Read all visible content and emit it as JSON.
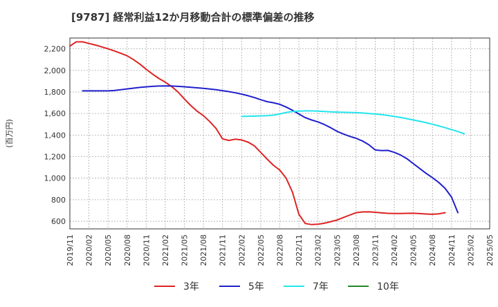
{
  "chart_data": {
    "type": "line",
    "title": "[9787]  経常利益12か月移動合計の標準偏差の推移",
    "ylabel": "(百万円)",
    "xlabel": "",
    "ylim": [
      530,
      2300
    ],
    "yticks": [
      600,
      800,
      1000,
      1200,
      1400,
      1600,
      1800,
      2000,
      2200
    ],
    "ytick_labels": [
      "600",
      "800",
      "1,000",
      "1,200",
      "1,400",
      "1,600",
      "1,800",
      "2,000",
      "2,200"
    ],
    "xticks": [
      "2019/11",
      "2020/02",
      "2020/05",
      "2020/08",
      "2020/11",
      "2021/02",
      "2021/05",
      "2021/08",
      "2021/11",
      "2022/02",
      "2022/05",
      "2022/08",
      "2022/11",
      "2023/02",
      "2023/05",
      "2023/08",
      "2023/11",
      "2024/02",
      "2024/05",
      "2024/08",
      "2024/11",
      "2025/02",
      "2025/05"
    ],
    "x_start": "2019/11",
    "legend_position": "bottom",
    "grid": true,
    "series": [
      {
        "name": "3年",
        "color": "#dd2222",
        "start": "2019/11",
        "values": [
          2225,
          2265,
          2265,
          2250,
          2235,
          2218,
          2200,
          2180,
          2158,
          2135,
          2100,
          2058,
          2010,
          1965,
          1925,
          1890,
          1850,
          1800,
          1735,
          1675,
          1622,
          1580,
          1525,
          1460,
          1365,
          1350,
          1362,
          1355,
          1335,
          1300,
          1240,
          1178,
          1120,
          1075,
          1000,
          870,
          665,
          580,
          570,
          573,
          582,
          597,
          612,
          635,
          658,
          680,
          687,
          688,
          684,
          678,
          674,
          673,
          673,
          674,
          675,
          672,
          668,
          665,
          670,
          680
        ]
      },
      {
        "name": "5年",
        "color": "#1f1fcc",
        "start": "2020/01",
        "values": [
          1810,
          1810,
          1810,
          1810,
          1810,
          1813,
          1820,
          1828,
          1835,
          1842,
          1847,
          1852,
          1855,
          1856,
          1855,
          1852,
          1848,
          1843,
          1838,
          1833,
          1827,
          1820,
          1812,
          1803,
          1792,
          1780,
          1765,
          1748,
          1728,
          1710,
          1700,
          1685,
          1660,
          1630,
          1595,
          1562,
          1540,
          1522,
          1498,
          1468,
          1435,
          1410,
          1388,
          1370,
          1345,
          1310,
          1262,
          1256,
          1258,
          1240,
          1215,
          1180,
          1135,
          1090,
          1045,
          1005,
          960,
          905,
          825,
          680
        ]
      },
      {
        "name": "7年",
        "color": "#22e5ee",
        "start": "2022/02",
        "values": [
          1573,
          1575,
          1576,
          1578,
          1580,
          1585,
          1595,
          1610,
          1618,
          1622,
          1624,
          1624,
          1622,
          1619,
          1616,
          1613,
          1611,
          1610,
          1608,
          1605,
          1600,
          1595,
          1590,
          1582,
          1573,
          1563,
          1552,
          1540,
          1528,
          1515,
          1500,
          1485,
          1468,
          1451,
          1433,
          1412
        ]
      },
      {
        "name": "10年",
        "color": "#228822",
        "start": "2019/11",
        "values": []
      }
    ]
  }
}
